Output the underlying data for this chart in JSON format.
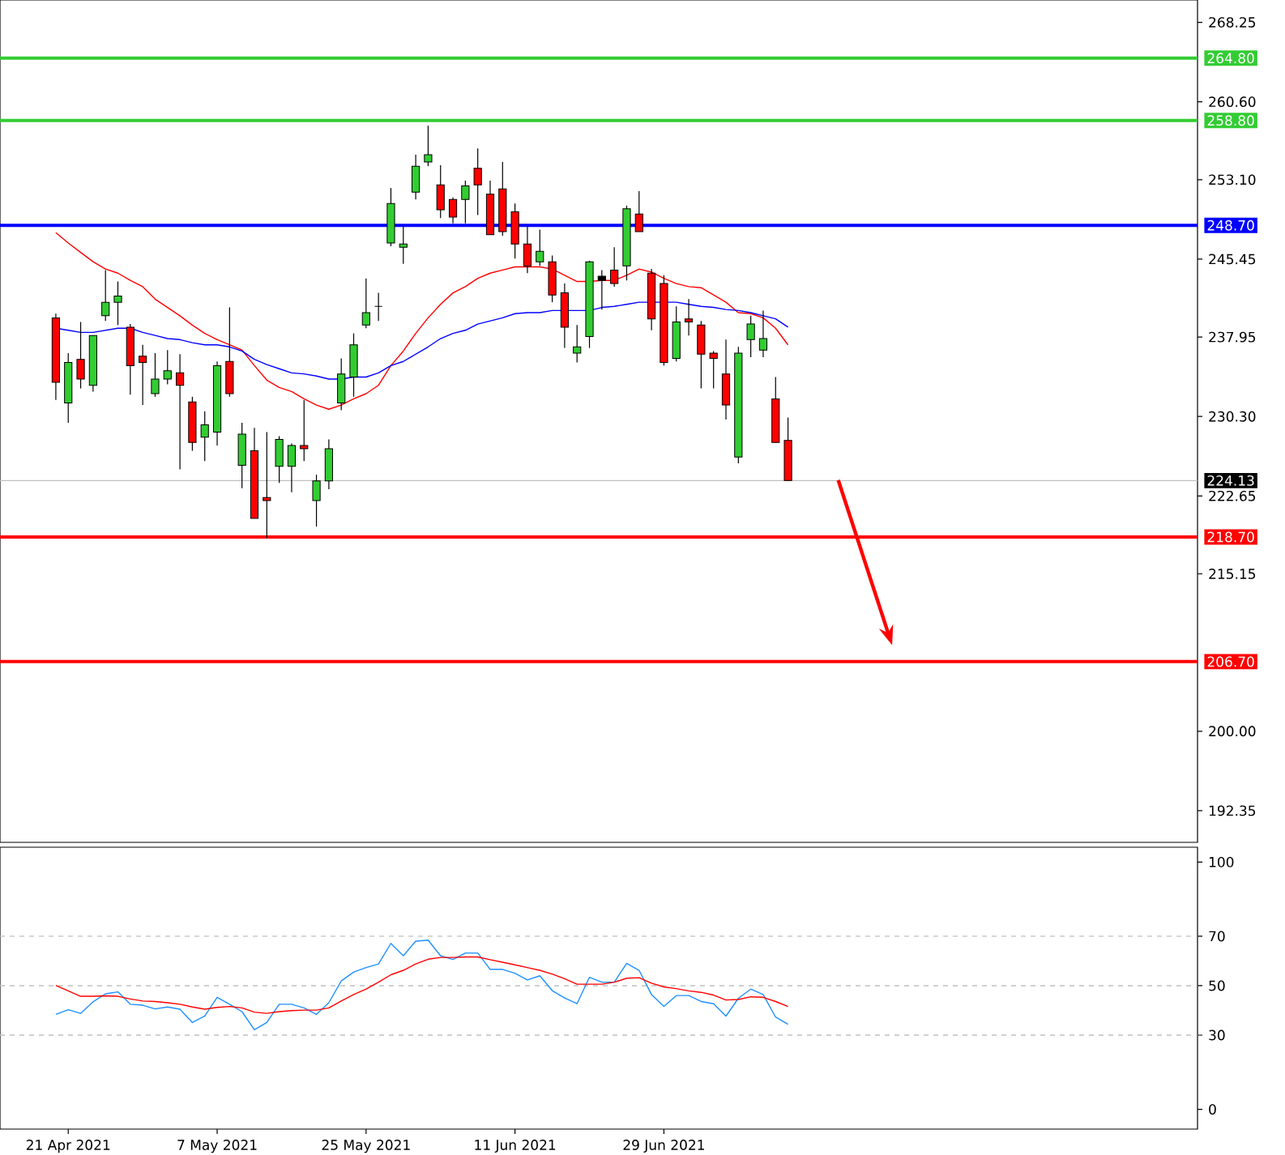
{
  "chart_data": [
    {
      "type": "candlestick",
      "categories": [
        null,
        null,
        null,
        null,
        null,
        null,
        null,
        null,
        null,
        null,
        null,
        null,
        null,
        null,
        null,
        null,
        null,
        null,
        null,
        null,
        null,
        null,
        null,
        null,
        null,
        null,
        null,
        null,
        null,
        null,
        null,
        null,
        null,
        null,
        null,
        null,
        null,
        null,
        null,
        null,
        null,
        null,
        null,
        null,
        null,
        null,
        null,
        null,
        null,
        null,
        null,
        null,
        null,
        null,
        null,
        null,
        null,
        null,
        null,
        null
      ],
      "ohlc": [
        [
          239.8,
          240.2,
          231.9,
          233.6
        ],
        [
          231.6,
          236.4,
          229.7,
          235.5
        ],
        [
          235.8,
          239.4,
          233.0,
          233.9
        ],
        [
          233.3,
          238.1,
          232.7,
          238.1
        ],
        [
          240.0,
          244.4,
          239.5,
          241.3
        ],
        [
          241.3,
          243.3,
          239.1,
          241.9
        ],
        [
          238.9,
          239.2,
          232.4,
          235.2
        ],
        [
          236.1,
          237.2,
          231.4,
          235.5
        ],
        [
          232.5,
          236.4,
          232.2,
          233.9
        ],
        [
          233.9,
          236.7,
          233.4,
          234.7
        ],
        [
          234.5,
          236.3,
          225.2,
          233.3
        ],
        [
          231.7,
          232.2,
          227.0,
          227.8
        ],
        [
          228.3,
          230.8,
          226.0,
          229.5
        ],
        [
          228.8,
          235.6,
          227.5,
          235.2
        ],
        [
          235.6,
          240.8,
          232.2,
          232.5
        ],
        [
          225.6,
          229.7,
          223.4,
          228.6
        ],
        [
          227.0,
          229.2,
          220.5,
          220.5
        ],
        [
          222.5,
          228.8,
          218.6,
          222.2
        ],
        [
          225.5,
          228.4,
          223.9,
          228.1
        ],
        [
          225.5,
          227.7,
          223.0,
          227.5
        ],
        [
          227.5,
          231.9,
          226.0,
          227.2
        ],
        [
          222.2,
          224.7,
          219.7,
          224.1
        ],
        [
          224.1,
          228.1,
          223.3,
          227.2
        ],
        [
          231.6,
          235.9,
          230.9,
          234.4
        ],
        [
          234.1,
          238.3,
          232.2,
          237.2
        ],
        [
          239.1,
          243.6,
          238.8,
          240.3
        ],
        [
          240.9,
          242.2,
          239.5,
          240.9
        ],
        [
          247.0,
          252.3,
          246.7,
          250.8
        ],
        [
          246.6,
          248.6,
          245.0,
          246.9
        ],
        [
          251.9,
          255.5,
          251.2,
          254.4
        ],
        [
          254.8,
          258.3,
          254.4,
          255.5
        ],
        [
          252.6,
          254.5,
          249.4,
          250.2
        ],
        [
          251.2,
          251.4,
          248.9,
          249.5
        ],
        [
          251.2,
          253.0,
          248.9,
          252.5
        ],
        [
          254.2,
          256.1,
          249.7,
          252.6
        ],
        [
          251.7,
          253.0,
          247.8,
          247.8
        ],
        [
          252.2,
          254.8,
          247.7,
          248.1
        ],
        [
          250.0,
          250.8,
          245.5,
          246.9
        ],
        [
          246.9,
          248.6,
          244.1,
          244.8
        ],
        [
          245.2,
          248.3,
          244.8,
          246.2
        ],
        [
          245.2,
          245.8,
          241.3,
          242.0
        ],
        [
          242.2,
          243.1,
          236.9,
          238.9
        ],
        [
          236.4,
          239.1,
          235.5,
          237.0
        ],
        [
          238.0,
          245.3,
          236.9,
          245.2
        ],
        [
          243.8,
          244.4,
          240.6,
          243.4
        ],
        [
          244.4,
          246.6,
          242.8,
          243.1
        ],
        [
          244.8,
          250.6,
          243.4,
          250.3
        ],
        [
          249.8,
          252.0,
          248.1,
          248.1
        ],
        [
          244.1,
          244.5,
          238.6,
          239.7
        ],
        [
          243.1,
          243.9,
          235.2,
          235.5
        ],
        [
          235.9,
          240.9,
          235.6,
          239.4
        ],
        [
          239.7,
          241.6,
          238.1,
          239.4
        ],
        [
          239.1,
          239.5,
          233.0,
          236.3
        ],
        [
          236.4,
          236.6,
          233.0,
          235.9
        ],
        [
          234.4,
          237.7,
          230.0,
          231.4
        ],
        [
          226.4,
          237.0,
          225.8,
          236.4
        ],
        [
          237.7,
          240.0,
          236.0,
          239.2
        ],
        [
          236.7,
          240.5,
          236.0,
          237.8
        ],
        [
          232.0,
          234.1,
          227.8,
          227.8
        ],
        [
          228.0,
          230.2,
          224.13,
          224.13
        ]
      ],
      "colors": [
        "#ff0000",
        "#32cd32",
        "#ff0000",
        "#32cd32",
        "#32cd32",
        "#32cd32",
        "#ff0000",
        "#ff0000",
        "#32cd32",
        "#32cd32",
        "#ff0000",
        "#ff0000",
        "#32cd32",
        "#32cd32",
        "#ff0000",
        "#32cd32",
        "#ff0000",
        "#ff0000",
        "#32cd32",
        "#32cd32",
        "#ff0000",
        "#32cd32",
        "#32cd32",
        "#32cd32",
        "#32cd32",
        "#32cd32",
        "#000000",
        "#32cd32",
        "#32cd32",
        "#32cd32",
        "#32cd32",
        "#ff0000",
        "#ff0000",
        "#32cd32",
        "#ff0000",
        "#ff0000",
        "#ff0000",
        "#ff0000",
        "#ff0000",
        "#32cd32",
        "#ff0000",
        "#ff0000",
        "#32cd32",
        "#32cd32",
        "#000000",
        "#ff0000",
        "#32cd32",
        "#ff0000",
        "#ff0000",
        "#ff0000",
        "#32cd32",
        "#ff0000",
        "#ff0000",
        "#ff0000",
        "#ff0000",
        "#32cd32",
        "#32cd32",
        "#32cd32",
        "#ff0000",
        "#ff0000"
      ],
      "series": [
        {
          "type": "line",
          "color": "#ff0000",
          "values": [
            248.0,
            247.0,
            246.1,
            245.2,
            244.5,
            244.1,
            243.4,
            242.8,
            241.6,
            240.8,
            240.0,
            239.1,
            238.3,
            237.7,
            237.2,
            236.7,
            235.2,
            233.8,
            233.1,
            232.7,
            232.0,
            231.4,
            231.0,
            231.4,
            232.0,
            232.5,
            233.3,
            235.2,
            236.6,
            238.3,
            239.8,
            241.1,
            242.2,
            242.8,
            243.6,
            244.1,
            244.4,
            244.7,
            244.7,
            244.7,
            244.5,
            243.9,
            243.3,
            243.3,
            243.4,
            243.4,
            243.9,
            244.5,
            244.2,
            243.6,
            243.1,
            242.8,
            242.7,
            242.0,
            241.3,
            240.3,
            240.2,
            239.8,
            238.8,
            237.2
          ]
        },
        {
          "type": "line",
          "color": "#0000ff",
          "values": [
            238.8,
            238.6,
            238.4,
            238.4,
            238.6,
            238.8,
            238.8,
            238.4,
            238.1,
            237.8,
            237.7,
            237.4,
            237.2,
            237.2,
            237.0,
            236.6,
            235.8,
            235.3,
            234.9,
            234.5,
            234.4,
            234.2,
            233.9,
            233.9,
            234.1,
            234.1,
            234.5,
            235.2,
            235.6,
            236.3,
            237.0,
            237.8,
            238.3,
            238.6,
            239.2,
            239.5,
            239.8,
            240.2,
            240.3,
            240.3,
            240.5,
            240.5,
            240.5,
            240.5,
            240.8,
            240.9,
            241.1,
            241.3,
            241.3,
            241.3,
            241.3,
            241.1,
            240.9,
            240.8,
            240.6,
            240.5,
            240.3,
            240.0,
            239.7,
            238.9
          ]
        }
      ],
      "ylim": [
        189.3,
        270.4
      ],
      "yticks": [
        {
          "value": 268.25,
          "label": "268.25"
        },
        {
          "value": 260.6,
          "label": "260.60"
        },
        {
          "value": 253.1,
          "label": "253.10"
        },
        {
          "value": 245.45,
          "label": "245.45"
        },
        {
          "value": 237.95,
          "label": "237.95"
        },
        {
          "value": 230.3,
          "label": "230.30"
        },
        {
          "value": 222.65,
          "label": "222.65"
        },
        {
          "value": 215.15,
          "label": "215.15"
        },
        {
          "value": 200.0,
          "label": "200.00"
        },
        {
          "value": 192.35,
          "label": "192.35"
        }
      ],
      "ref_lines": [
        {
          "axis": "y",
          "value": 264.8,
          "label": "264.80",
          "color": "#33cc33"
        },
        {
          "axis": "y",
          "value": 258.8,
          "label": "258.80",
          "color": "#33cc33"
        },
        {
          "axis": "y",
          "value": 248.7,
          "label": "248.70",
          "color": "#0000ff"
        },
        {
          "axis": "y",
          "value": 224.13,
          "label": "224.13",
          "color": "#c0c0c0"
        },
        {
          "axis": "y",
          "value": 218.7,
          "label": "218.70",
          "color": "#ff0000"
        },
        {
          "axis": "y",
          "value": 206.7,
          "label": "206.70",
          "color": "#ff0000"
        }
      ],
      "tick_labels": "y"
    },
    {
      "type": "line",
      "categories": [
        null,
        "21 Apr 2021",
        null,
        null,
        null,
        null,
        null,
        null,
        null,
        null,
        null,
        null,
        null,
        "7 May 2021",
        null,
        null,
        null,
        null,
        null,
        null,
        null,
        null,
        null,
        null,
        null,
        "25 May 2021",
        null,
        null,
        null,
        null,
        null,
        null,
        null,
        null,
        null,
        null,
        null,
        "11 Jun 2021",
        null,
        null,
        null,
        null,
        null,
        null,
        null,
        null,
        null,
        null,
        null,
        "29 Jun 2021",
        null,
        null,
        null,
        null,
        null,
        null,
        null,
        null,
        null,
        null
      ],
      "series": [
        {
          "color": "#1e90ff",
          "values": [
            38.4,
            40.3,
            38.8,
            43.5,
            46.7,
            47.5,
            42.5,
            42.1,
            40.6,
            41.4,
            40.5,
            35.1,
            37.7,
            45.3,
            42.5,
            39.5,
            32.2,
            35.1,
            42.5,
            42.5,
            41.0,
            38.4,
            43.1,
            51.9,
            55.5,
            57.3,
            58.8,
            67.1,
            62.1,
            68.0,
            68.4,
            62.1,
            60.6,
            63.2,
            63.2,
            56.6,
            56.6,
            55.0,
            52.3,
            54.0,
            48.0,
            45.0,
            42.7,
            53.4,
            51.4,
            51.4,
            59.0,
            56.2,
            46.4,
            41.6,
            46.0,
            46.0,
            43.6,
            42.7,
            37.7,
            44.9,
            48.6,
            46.4,
            37.3,
            34.4
          ]
        },
        {
          "color": "#ff0000",
          "values": [
            50.1,
            47.9,
            45.7,
            45.7,
            45.9,
            45.7,
            44.6,
            43.8,
            43.6,
            43.1,
            42.5,
            41.4,
            40.5,
            41.2,
            41.6,
            41.0,
            39.3,
            38.8,
            39.5,
            39.9,
            40.1,
            40.1,
            41.0,
            43.8,
            46.4,
            48.6,
            51.4,
            54.4,
            56.2,
            58.8,
            60.7,
            61.4,
            61.4,
            61.6,
            61.6,
            60.5,
            59.5,
            58.4,
            57.3,
            56.2,
            54.7,
            52.8,
            50.6,
            50.6,
            50.6,
            51.4,
            53.0,
            53.2,
            51.0,
            49.5,
            48.8,
            47.9,
            47.3,
            46.2,
            44.2,
            44.4,
            45.5,
            45.3,
            43.6,
            41.6
          ]
        }
      ],
      "ylim": [
        -8,
        106
      ],
      "yticks": [
        0,
        30,
        50,
        70,
        100
      ],
      "ref_lines": [
        {
          "axis": "y",
          "value": 30,
          "color": "#c0c0c0",
          "line_style": "dashed"
        },
        {
          "axis": "y",
          "value": 50,
          "color": "#c0c0c0",
          "line_style": "dashed"
        },
        {
          "axis": "y",
          "value": 70,
          "color": "#c0c0c0",
          "line_style": "dashed"
        }
      ]
    }
  ]
}
